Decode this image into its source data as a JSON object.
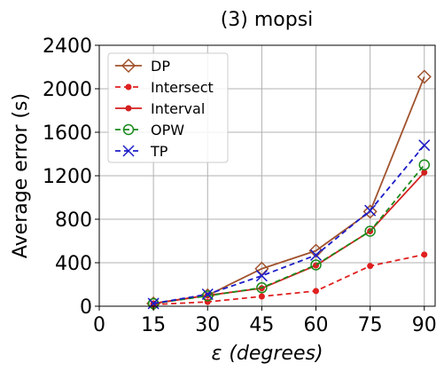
{
  "chart_data": {
    "type": "line",
    "title": "(3) mopsi",
    "xlabel_prefix": "ε",
    "xlabel_italic": "(degrees)",
    "ylabel": "Average error (s)",
    "xlim": [
      0,
      93
    ],
    "ylim": [
      0,
      2400
    ],
    "x_ticks": [
      0,
      15,
      30,
      45,
      60,
      75,
      90
    ],
    "y_ticks": [
      0,
      400,
      800,
      1200,
      1600,
      2000,
      2400
    ],
    "grid": true,
    "legend_position": "top-left",
    "x": [
      15,
      30,
      45,
      60,
      75,
      90
    ],
    "series": [
      {
        "name": "DP",
        "color": "#a0522d",
        "dash": "solid",
        "marker": "diamond-open",
        "values": [
          25,
          100,
          345,
          510,
          870,
          2110
        ]
      },
      {
        "name": "Intersect",
        "color": "#e02020",
        "dash": "dashed",
        "marker": "dot",
        "values": [
          15,
          40,
          90,
          140,
          370,
          475
        ]
      },
      {
        "name": "Interval",
        "color": "#d42020",
        "dash": "solid",
        "marker": "dot",
        "values": [
          25,
          100,
          165,
          375,
          690,
          1230
        ]
      },
      {
        "name": "OPW",
        "color": "#1a8a1a",
        "dash": "dashed",
        "marker": "circle-open",
        "values": [
          25,
          95,
          170,
          380,
          690,
          1300
        ]
      },
      {
        "name": "TP",
        "color": "#1c1cc8",
        "dash": "dashed",
        "marker": "x",
        "values": [
          25,
          110,
          280,
          470,
          880,
          1480
        ]
      }
    ]
  }
}
